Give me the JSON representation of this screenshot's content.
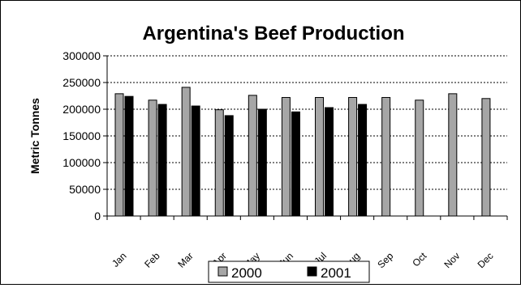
{
  "chart_data": {
    "type": "bar",
    "title": "Argentina's Beef Production",
    "xlabel": "",
    "ylabel": "Metric Tonnes",
    "categories": [
      "Jan",
      "Feb",
      "Mar",
      "Apr",
      "May",
      "Jun",
      "Jul",
      "Aug",
      "Sep",
      "Oct",
      "Nov",
      "Dec"
    ],
    "series": [
      {
        "name": "2000",
        "color": "#a6a6a6",
        "values": [
          229000,
          217000,
          241000,
          199000,
          226000,
          222000,
          222000,
          222000,
          222000,
          217000,
          229000,
          220000
        ]
      },
      {
        "name": "2001",
        "color": "#000000",
        "values": [
          224000,
          209000,
          206000,
          188000,
          200000,
          195000,
          203000,
          209000,
          null,
          null,
          null,
          null
        ]
      }
    ],
    "ylim": [
      0,
      300000
    ],
    "yticks": [
      0,
      50000,
      100000,
      150000,
      200000,
      250000,
      300000
    ],
    "ytick_labels": [
      "0",
      "50000",
      "100000",
      "150000",
      "200000",
      "250000",
      "300000"
    ],
    "grid": "horizontal dashed",
    "legend_position": "bottom"
  }
}
